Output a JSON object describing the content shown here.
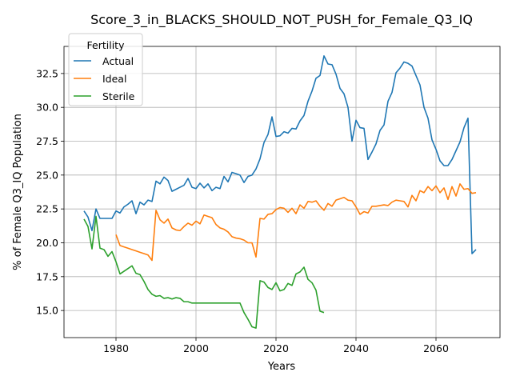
{
  "chart_data": {
    "type": "line",
    "title": "Score_3_in_BLACKS_SHOULD_NOT_PUSH_for_Female_Q3_IQ",
    "xlabel": "Years",
    "ylabel": "% of Female Q3_IQ Population",
    "xlim": [
      1967,
      2076
    ],
    "ylim": [
      13.0,
      34.5
    ],
    "xticks": [
      1980,
      2000,
      2020,
      2040,
      2060
    ],
    "yticks": [
      15.0,
      17.5,
      20.0,
      22.5,
      25.0,
      27.5,
      30.0,
      32.5
    ],
    "grid": true,
    "legend": {
      "title": "Fertility",
      "placement": "upper-left"
    },
    "series": [
      {
        "name": "Actual",
        "color": "#1f77b4",
        "x": [
          1972,
          1973,
          1974,
          1975,
          1976,
          1977,
          1978,
          1979,
          1980,
          1981,
          1982,
          1983,
          1984,
          1985,
          1986,
          1987,
          1988,
          1989,
          1990,
          1991,
          1992,
          1993,
          1994,
          1995,
          1996,
          1997,
          1998,
          1999,
          2000,
          2001,
          2002,
          2003,
          2004,
          2005,
          2006,
          2007,
          2008,
          2009,
          2010,
          2011,
          2012,
          2013,
          2014,
          2015,
          2016,
          2017,
          2018,
          2019,
          2020,
          2021,
          2022,
          2023,
          2024,
          2025,
          2026,
          2027,
          2028,
          2029,
          2030,
          2031,
          2032,
          2033,
          2034,
          2035,
          2036,
          2037,
          2038,
          2039,
          2040,
          2041,
          2042,
          2043,
          2044,
          2045,
          2046,
          2047,
          2048,
          2049,
          2050,
          2051,
          2052,
          2053,
          2054,
          2055,
          2056,
          2057,
          2058,
          2059,
          2060,
          2061,
          2062,
          2063,
          2064,
          2065,
          2066,
          2067,
          2068,
          2069,
          2070
        ],
        "values": [
          22.35,
          21.9,
          20.9,
          22.5,
          21.8,
          21.8,
          21.8,
          21.8,
          22.35,
          22.2,
          22.65,
          22.85,
          23.1,
          22.15,
          23.0,
          22.8,
          23.15,
          23.05,
          24.55,
          24.35,
          24.85,
          24.6,
          23.8,
          23.95,
          24.1,
          24.25,
          24.75,
          24.1,
          24.0,
          24.4,
          24.05,
          24.35,
          23.85,
          24.1,
          24.0,
          24.9,
          24.5,
          25.2,
          25.1,
          25.0,
          24.45,
          24.9,
          25.0,
          25.45,
          26.2,
          27.4,
          28.0,
          29.3,
          27.85,
          27.9,
          28.2,
          28.1,
          28.45,
          28.4,
          29.0,
          29.4,
          30.45,
          31.2,
          32.15,
          32.35,
          33.8,
          33.2,
          33.15,
          32.45,
          31.4,
          31.0,
          30.0,
          27.5,
          29.05,
          28.5,
          28.45,
          26.15,
          26.7,
          27.3,
          28.3,
          28.7,
          30.45,
          31.1,
          32.55,
          32.9,
          33.35,
          33.25,
          33.05,
          32.35,
          31.65,
          30.0,
          29.2,
          27.6,
          26.9,
          26.05,
          25.7,
          25.7,
          26.15,
          26.8,
          27.45,
          28.5,
          29.2,
          19.2,
          19.5
        ]
      },
      {
        "name": "Ideal",
        "color": "#ff7f0e",
        "x": [
          1980,
          1981,
          1982,
          1983,
          1984,
          1985,
          1986,
          1987,
          1988,
          1989,
          1990,
          1991,
          1992,
          1993,
          1994,
          1995,
          1996,
          1997,
          1998,
          1999,
          2000,
          2001,
          2002,
          2003,
          2004,
          2005,
          2006,
          2007,
          2008,
          2009,
          2010,
          2011,
          2012,
          2013,
          2014,
          2015,
          2016,
          2017,
          2018,
          2019,
          2020,
          2021,
          2022,
          2023,
          2024,
          2025,
          2026,
          2027,
          2028,
          2029,
          2030,
          2031,
          2032,
          2033,
          2034,
          2035,
          2036,
          2037,
          2038,
          2039,
          2040,
          2041,
          2042,
          2043,
          2044,
          2045,
          2046,
          2047,
          2048,
          2049,
          2050,
          2051,
          2052,
          2053,
          2054,
          2055,
          2056,
          2057,
          2058,
          2059,
          2060,
          2061,
          2062,
          2063,
          2064,
          2065,
          2066,
          2067,
          2068,
          2069,
          2070
        ],
        "values": [
          20.6,
          19.8,
          19.7,
          19.6,
          19.5,
          19.4,
          19.3,
          19.2,
          19.1,
          18.7,
          22.4,
          21.7,
          21.45,
          21.75,
          21.1,
          20.95,
          20.9,
          21.2,
          21.45,
          21.3,
          21.6,
          21.4,
          22.05,
          21.95,
          21.85,
          21.35,
          21.1,
          21.0,
          20.8,
          20.45,
          20.35,
          20.3,
          20.2,
          20.0,
          20.0,
          18.95,
          21.8,
          21.75,
          22.1,
          22.15,
          22.45,
          22.6,
          22.55,
          22.25,
          22.55,
          22.15,
          22.8,
          22.55,
          23.05,
          23.0,
          23.1,
          22.7,
          22.4,
          22.9,
          22.7,
          23.15,
          23.25,
          23.35,
          23.15,
          23.1,
          22.65,
          22.1,
          22.3,
          22.2,
          22.7,
          22.7,
          22.75,
          22.8,
          22.75,
          23.0,
          23.15,
          23.1,
          23.05,
          22.65,
          23.5,
          23.1,
          23.85,
          23.7,
          24.15,
          23.85,
          24.2,
          23.7,
          24.05,
          23.2,
          24.15,
          23.45,
          24.35,
          23.95,
          24.0,
          23.65,
          23.7
        ]
      },
      {
        "name": "Sterile",
        "color": "#2ca02c",
        "x": [
          1972,
          1973,
          1974,
          1975,
          1976,
          1977,
          1978,
          1979,
          1980,
          1981,
          1982,
          1983,
          1984,
          1985,
          1986,
          1987,
          1988,
          1989,
          1990,
          1991,
          1992,
          1993,
          1994,
          1995,
          1996,
          1997,
          1998,
          1999,
          2000,
          2001,
          2002,
          2003,
          2004,
          2005,
          2006,
          2007,
          2008,
          2009,
          2010,
          2011,
          2012,
          2013,
          2014,
          2015,
          2016,
          2017,
          2018,
          2019,
          2020,
          2021,
          2022,
          2023,
          2024,
          2025,
          2026,
          2027,
          2028,
          2029,
          2030,
          2031,
          2032
        ],
        "values": [
          21.75,
          21.2,
          19.55,
          21.95,
          19.6,
          19.5,
          19.0,
          19.35,
          18.6,
          17.7,
          17.9,
          18.1,
          18.3,
          17.75,
          17.65,
          17.15,
          16.55,
          16.2,
          16.05,
          16.1,
          15.9,
          15.95,
          15.85,
          15.95,
          15.9,
          15.65,
          15.65,
          15.55,
          15.55,
          15.55,
          15.55,
          15.55,
          15.55,
          15.55,
          15.55,
          15.55,
          15.55,
          15.55,
          15.55,
          15.55,
          14.85,
          14.35,
          13.8,
          13.7,
          17.2,
          17.1,
          16.7,
          16.55,
          17.05,
          16.45,
          16.55,
          17.0,
          16.85,
          17.7,
          17.85,
          18.2,
          17.3,
          17.05,
          16.5,
          14.95,
          14.85
        ]
      }
    ]
  }
}
